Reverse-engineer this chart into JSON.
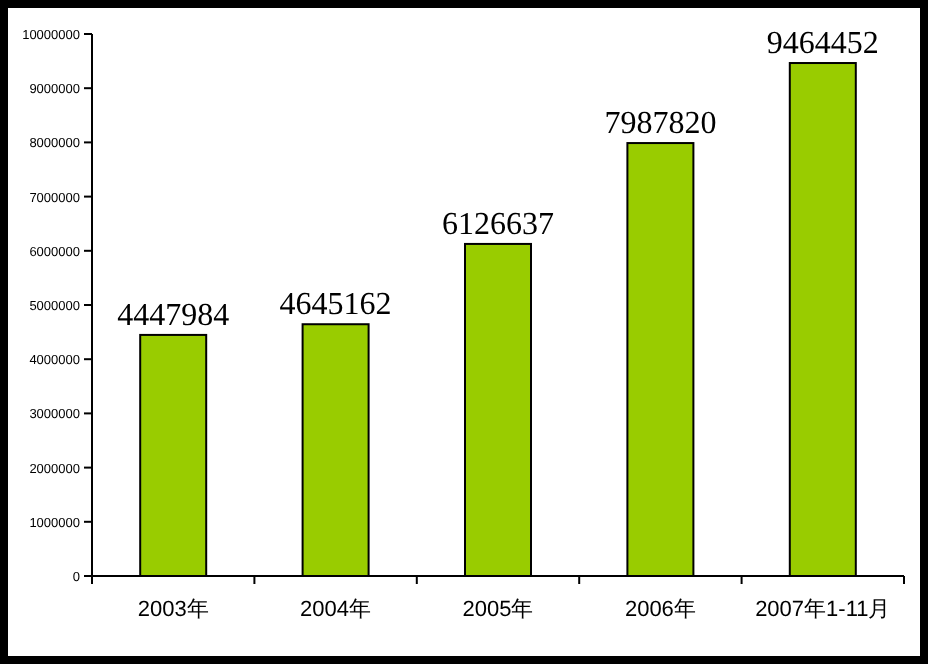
{
  "chart_data": {
    "type": "bar",
    "categories": [
      "2003年",
      "2004年",
      "2005年",
      "2006年",
      "2007年1-11月"
    ],
    "values": [
      4447984,
      4645162,
      6126637,
      7987820,
      9464452
    ],
    "color": "#99cc00",
    "ylim": [
      0,
      10000000
    ],
    "yticks": [
      0,
      1000000,
      2000000,
      3000000,
      4000000,
      5000000,
      6000000,
      7000000,
      8000000,
      9000000,
      10000000
    ],
    "data_labels": true
  }
}
